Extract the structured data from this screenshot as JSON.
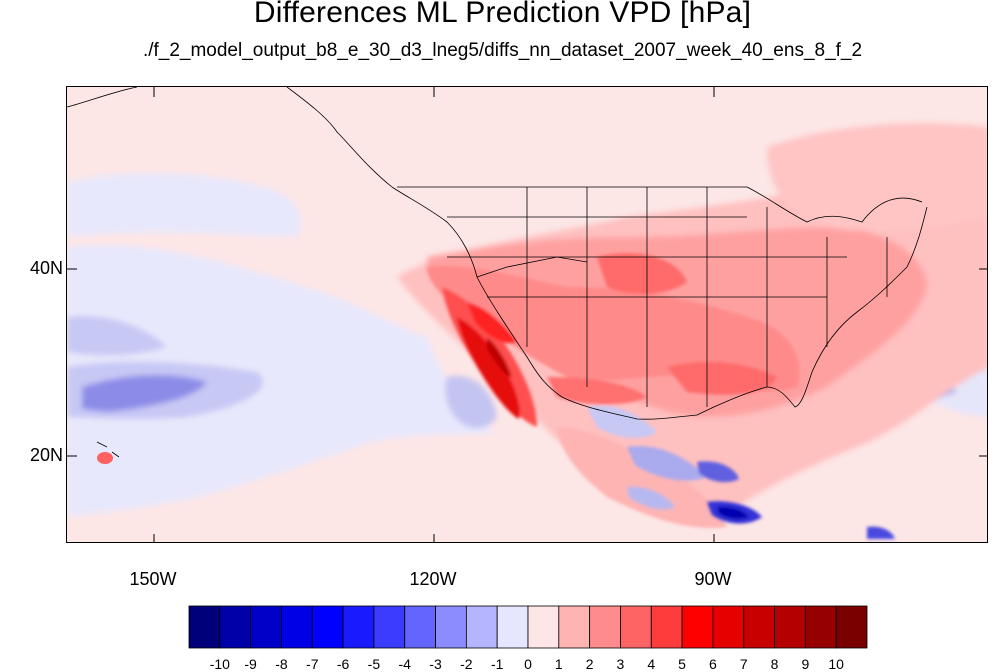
{
  "title": "Differences ML Prediction VPD [hPa]",
  "subtitle": "./f_2_model_output_b8_e_30_d3_lneg5/diffs_nn_dataset_2007_week_40_ens_8_f_2",
  "axes": {
    "x_ticks": [
      {
        "label": "150W",
        "lon": -150
      },
      {
        "label": "120W",
        "lon": -120
      },
      {
        "label": "90W",
        "lon": -90
      }
    ],
    "y_ticks": [
      {
        "label": "40N",
        "lat": 40
      },
      {
        "label": "20N",
        "lat": 20
      }
    ],
    "lon_range": [
      -159.3,
      -60.5
    ],
    "lat_range": [
      10.4,
      59.3
    ]
  },
  "colorbar": {
    "labels": [
      "-10",
      "-9",
      "-8",
      "-7",
      "-6",
      "-5",
      "-4",
      "-3",
      "-2",
      "-1",
      "0",
      "1",
      "2",
      "3",
      "4",
      "5",
      "6",
      "7",
      "8",
      "9",
      "10"
    ],
    "colors": [
      "#00007a",
      "#0000a8",
      "#0000c8",
      "#0000e6",
      "#0000ff",
      "#1a1aff",
      "#3c3cff",
      "#6464ff",
      "#8c8cff",
      "#b4b4ff",
      "#e6e6ff",
      "#ffe6e6",
      "#ffb4b4",
      "#ff8c8c",
      "#ff6464",
      "#ff3c3c",
      "#ff0000",
      "#e60000",
      "#c80000",
      "#b40000",
      "#960000",
      "#7a0000"
    ]
  }
}
